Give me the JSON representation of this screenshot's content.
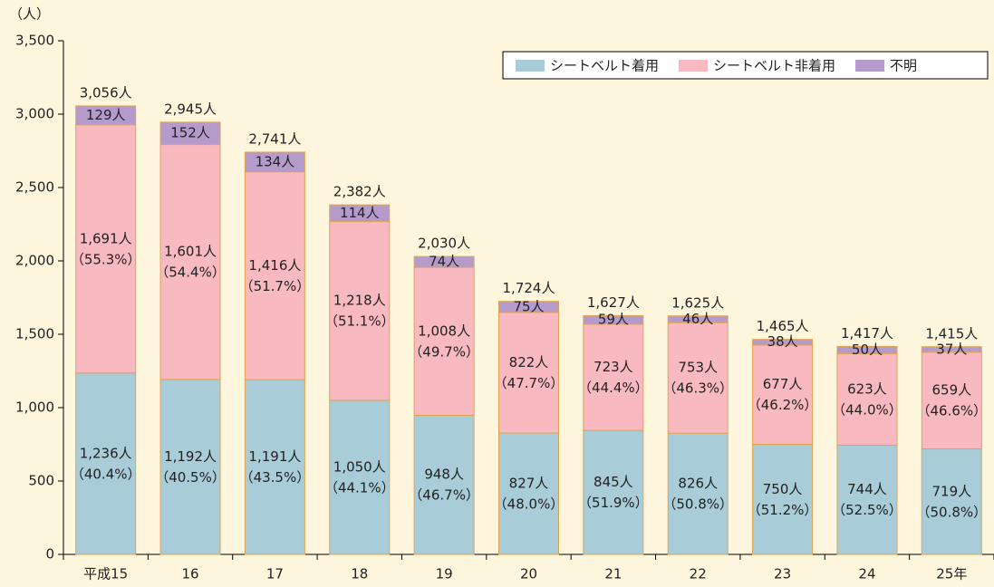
{
  "chart_data": {
    "type": "stacked_bar",
    "y_label": "（人）",
    "categories": [
      "平成15",
      "16",
      "17",
      "18",
      "19",
      "20",
      "21",
      "22",
      "23",
      "24",
      "25年"
    ],
    "series": [
      {
        "name": "シートベルト着用",
        "color": "#a8ccd8",
        "values": [
          1236,
          1192,
          1191,
          1050,
          948,
          827,
          845,
          826,
          750,
          744,
          719
        ],
        "value_labels": [
          "1,236人",
          "1,192人",
          "1,191人",
          "1,050人",
          "948人",
          "827人",
          "845人",
          "826人",
          "750人",
          "744人",
          "719人"
        ],
        "share_labels": [
          "（40.4%）",
          "（40.5%）",
          "（43.5%）",
          "（44.1%）",
          "（46.7%）",
          "（48.0%）",
          "（51.9%）",
          "（50.8%）",
          "（51.2%）",
          "（52.5%）",
          "（50.8%）"
        ]
      },
      {
        "name": "シートベルト非着用",
        "color": "#f8b9c0",
        "values": [
          1691,
          1601,
          1416,
          1218,
          1008,
          822,
          723,
          753,
          677,
          623,
          659
        ],
        "value_labels": [
          "1,691人",
          "1,601人",
          "1,416人",
          "1,218人",
          "1,008人",
          "822人",
          "723人",
          "753人",
          "677人",
          "623人",
          "659人"
        ],
        "share_labels": [
          "（55.3%）",
          "（54.4%）",
          "（51.7%）",
          "（51.1%）",
          "（49.7%）",
          "（47.7%）",
          "（44.4%）",
          "（46.3%）",
          "（46.2%）",
          "（44.0%）",
          "（46.6%）"
        ]
      },
      {
        "name": "不明",
        "color": "#b49bcc",
        "values": [
          129,
          152,
          134,
          114,
          74,
          75,
          59,
          46,
          38,
          50,
          37
        ],
        "value_labels": [
          "129人",
          "152人",
          "134人",
          "114人",
          "74人",
          "75人",
          "59人",
          "46人",
          "38人",
          "50人",
          "37人"
        ]
      }
    ],
    "totals": [
      3056,
      2945,
      2741,
      2382,
      2030,
      1724,
      1627,
      1625,
      1465,
      1417,
      1415
    ],
    "total_labels": [
      "3,056人",
      "2,945人",
      "2,741人",
      "2,382人",
      "2,030人",
      "1,724人",
      "1,627人",
      "1,625人",
      "1,465人",
      "1,417人",
      "1,415人"
    ],
    "ylim": [
      0,
      3500
    ],
    "yticks": [
      0,
      500,
      {
        "value": 1000,
        "label": "1,000"
      },
      {
        "value": 1500,
        "label": "1,500"
      },
      {
        "value": 2000,
        "label": "2,000"
      },
      {
        "value": 2500,
        "label": "2,500"
      },
      {
        "value": 3000,
        "label": "3,000"
      },
      {
        "value": 3500,
        "label": "3,500"
      }
    ],
    "legend": "top-right"
  }
}
